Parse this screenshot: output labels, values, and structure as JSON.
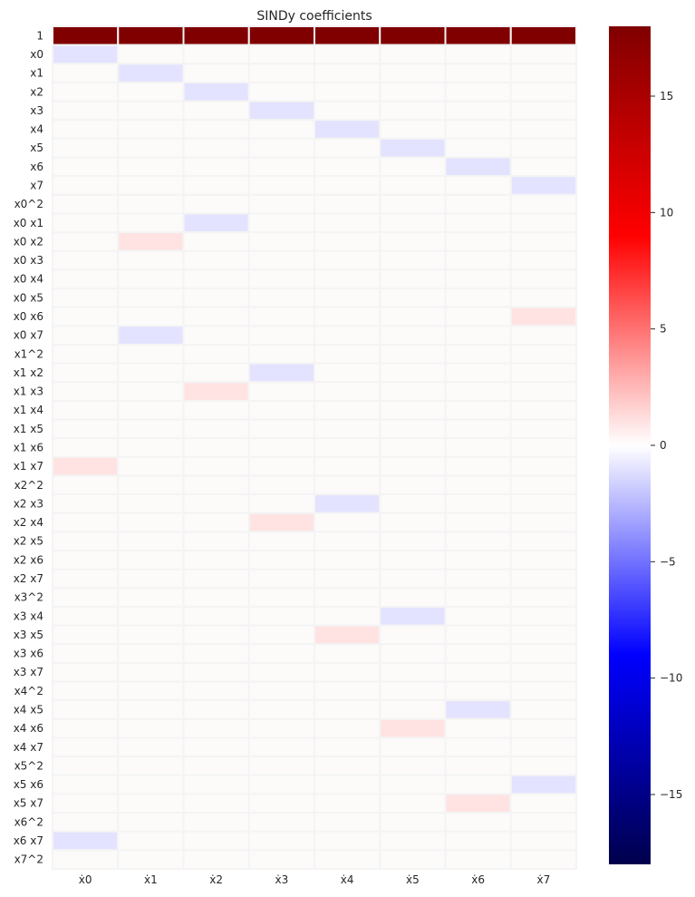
{
  "chart_data": {
    "type": "heatmap",
    "title": "SINDy coefficients",
    "columns": [
      "ẋ0",
      "ẋ1",
      "ẋ2",
      "ẋ3",
      "ẋ4",
      "ẋ5",
      "ẋ6",
      "ẋ7"
    ],
    "rows": [
      "1",
      "x0",
      "x1",
      "x2",
      "x3",
      "x4",
      "x5",
      "x6",
      "x7",
      "x0^2",
      "x0 x1",
      "x0 x2",
      "x0 x3",
      "x0 x4",
      "x0 x5",
      "x0 x6",
      "x0 x7",
      "x1^2",
      "x1 x2",
      "x1 x3",
      "x1 x4",
      "x1 x5",
      "x1 x6",
      "x1 x7",
      "x2^2",
      "x2 x3",
      "x2 x4",
      "x2 x5",
      "x2 x6",
      "x2 x7",
      "x3^2",
      "x3 x4",
      "x3 x5",
      "x3 x6",
      "x3 x7",
      "x4^2",
      "x4 x5",
      "x4 x6",
      "x4 x7",
      "x5^2",
      "x5 x6",
      "x5 x7",
      "x6^2",
      "x6 x7",
      "x7^2"
    ],
    "values": [
      [
        18,
        18,
        18,
        18,
        18,
        18,
        18,
        18
      ],
      [
        -1,
        0,
        0,
        0,
        0,
        0,
        0,
        0
      ],
      [
        0,
        -1,
        0,
        0,
        0,
        0,
        0,
        0
      ],
      [
        0,
        0,
        -1,
        0,
        0,
        0,
        0,
        0
      ],
      [
        0,
        0,
        0,
        -1,
        0,
        0,
        0,
        0
      ],
      [
        0,
        0,
        0,
        0,
        -1,
        0,
        0,
        0
      ],
      [
        0,
        0,
        0,
        0,
        0,
        -1,
        0,
        0
      ],
      [
        0,
        0,
        0,
        0,
        0,
        0,
        -1,
        0
      ],
      [
        0,
        0,
        0,
        0,
        0,
        0,
        0,
        -1
      ],
      [
        0,
        0,
        0,
        0,
        0,
        0,
        0,
        0
      ],
      [
        0,
        0,
        -1,
        0,
        0,
        0,
        0,
        0
      ],
      [
        0,
        1,
        0,
        0,
        0,
        0,
        0,
        0
      ],
      [
        0,
        0,
        0,
        0,
        0,
        0,
        0,
        0
      ],
      [
        0,
        0,
        0,
        0,
        0,
        0,
        0,
        0
      ],
      [
        0,
        0,
        0,
        0,
        0,
        0,
        0,
        0
      ],
      [
        0,
        0,
        0,
        0,
        0,
        0,
        0,
        1
      ],
      [
        0,
        -1,
        0,
        0,
        0,
        0,
        0,
        0
      ],
      [
        0,
        0,
        0,
        0,
        0,
        0,
        0,
        0
      ],
      [
        0,
        0,
        0,
        -1,
        0,
        0,
        0,
        0
      ],
      [
        0,
        0,
        1,
        0,
        0,
        0,
        0,
        0
      ],
      [
        0,
        0,
        0,
        0,
        0,
        0,
        0,
        0
      ],
      [
        0,
        0,
        0,
        0,
        0,
        0,
        0,
        0
      ],
      [
        0,
        0,
        0,
        0,
        0,
        0,
        0,
        0
      ],
      [
        1,
        0,
        0,
        0,
        0,
        0,
        0,
        0
      ],
      [
        0,
        0,
        0,
        0,
        0,
        0,
        0,
        0
      ],
      [
        0,
        0,
        0,
        0,
        -1,
        0,
        0,
        0
      ],
      [
        0,
        0,
        0,
        1,
        0,
        0,
        0,
        0
      ],
      [
        0,
        0,
        0,
        0,
        0,
        0,
        0,
        0
      ],
      [
        0,
        0,
        0,
        0,
        0,
        0,
        0,
        0
      ],
      [
        0,
        0,
        0,
        0,
        0,
        0,
        0,
        0
      ],
      [
        0,
        0,
        0,
        0,
        0,
        0,
        0,
        0
      ],
      [
        0,
        0,
        0,
        0,
        0,
        -1,
        0,
        0
      ],
      [
        0,
        0,
        0,
        0,
        1,
        0,
        0,
        0
      ],
      [
        0,
        0,
        0,
        0,
        0,
        0,
        0,
        0
      ],
      [
        0,
        0,
        0,
        0,
        0,
        0,
        0,
        0
      ],
      [
        0,
        0,
        0,
        0,
        0,
        0,
        0,
        0
      ],
      [
        0,
        0,
        0,
        0,
        0,
        0,
        -1,
        0
      ],
      [
        0,
        0,
        0,
        0,
        0,
        1,
        0,
        0
      ],
      [
        0,
        0,
        0,
        0,
        0,
        0,
        0,
        0
      ],
      [
        0,
        0,
        0,
        0,
        0,
        0,
        0,
        0
      ],
      [
        0,
        0,
        0,
        0,
        0,
        0,
        0,
        -1
      ],
      [
        0,
        0,
        0,
        0,
        0,
        0,
        1,
        0
      ],
      [
        0,
        0,
        0,
        0,
        0,
        0,
        0,
        0
      ],
      [
        -1,
        0,
        0,
        0,
        0,
        0,
        0,
        0
      ],
      [
        0,
        0,
        0,
        0,
        0,
        0,
        0,
        0
      ]
    ],
    "colorscale": "seismic",
    "colors": {
      "low": "#00004c",
      "mid_low": "#0000ff",
      "zero": "#ffffff",
      "mid_high": "#ff0000",
      "high": "#800000"
    },
    "colorbar": {
      "range": [
        -18,
        18
      ],
      "ticks": [
        15,
        10,
        5,
        0,
        -5,
        -10,
        -15
      ]
    },
    "grid": false,
    "legend": "colorbar-right"
  }
}
